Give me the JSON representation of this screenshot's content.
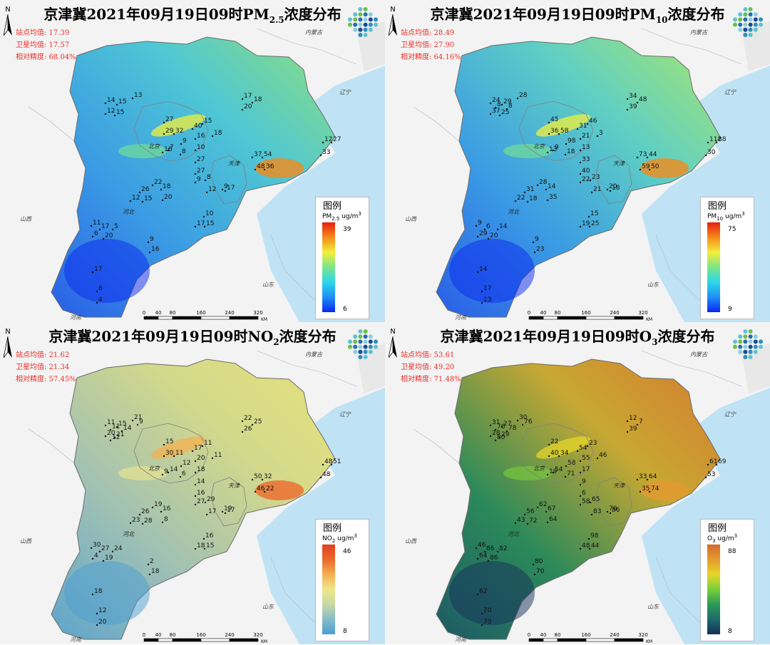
{
  "panels": [
    {
      "id": "pm25",
      "title_prefix": "京津冀2021年09月19日09时PM",
      "title_sub": "2.5",
      "title_suffix": "浓度分布",
      "stats": {
        "station_mean": "站点均值: 17.39",
        "satellite_mean": "卫星均值: 17.57",
        "accuracy": "相对精度: 68.04%"
      },
      "legend": {
        "title": "图例",
        "unit_prefix": "PM",
        "unit_sub": "2.5",
        "unit_suffix": " ug/m",
        "unit_sup": "3",
        "max": "39",
        "min": "6",
        "colors": [
          "#0a28f0",
          "#1f8ff5",
          "#2bd7ea",
          "#7be68a",
          "#f2ef3a",
          "#f58a1a",
          "#e81d10"
        ]
      },
      "ramp_fill": [
        "#2a5ee6",
        "#3a9ae4",
        "#4fc7d4",
        "#8fe07c"
      ],
      "stations": [
        "14",
        "15",
        "13",
        "12",
        "15",
        "17",
        "18",
        "20",
        "27",
        "15",
        "29",
        "32",
        "40",
        "16",
        "18",
        "7",
        "9",
        "8",
        "16",
        "10",
        "27",
        "27",
        "37",
        "54",
        "48",
        "36",
        "12",
        "27",
        "33",
        "22",
        "26",
        "18",
        "15",
        "12",
        "9",
        "8",
        "12",
        "9",
        "17",
        "20",
        "10",
        "17",
        "15",
        "11",
        "17",
        "5",
        "6",
        "20",
        "9",
        "16",
        "17",
        "6",
        "4"
      ]
    },
    {
      "id": "pm10",
      "title_prefix": "京津冀2021年09月19日09时PM",
      "title_sub": "10",
      "title_suffix": "浓度分布",
      "stats": {
        "station_mean": "站点均值: 28.49",
        "satellite_mean": "卫星均值: 27.90",
        "accuracy": "相对精度: 64.16%"
      },
      "legend": {
        "title": "图例",
        "unit_prefix": "PM",
        "unit_sub": "10",
        "unit_suffix": " ug/m",
        "unit_sup": "3",
        "max": "75",
        "min": "9",
        "colors": [
          "#0a28f0",
          "#1f8ff5",
          "#2bd7ea",
          "#7be68a",
          "#f2ef3a",
          "#f58a1a",
          "#e81d10"
        ]
      },
      "ramp_fill": [
        "#2a5ee6",
        "#3a9ae4",
        "#5fcfc4",
        "#a8e66c"
      ],
      "stations": [
        "24",
        "29",
        "28",
        "37",
        "25",
        "34",
        "48",
        "39",
        "45",
        "46",
        "36",
        "58",
        "31",
        "21",
        "3",
        "9",
        "98",
        "18",
        "13",
        "13",
        "33",
        "40",
        "73",
        "44",
        "59",
        "50",
        "112",
        "88",
        "30",
        "28",
        "31",
        "14",
        "18",
        "22",
        "22",
        "23",
        "21",
        "20",
        "18",
        "35",
        "15",
        "19",
        "25",
        "9",
        "6",
        "14",
        "29",
        "20",
        "9",
        "23",
        "14",
        "17",
        "13",
        "8",
        "8"
      ]
    },
    {
      "id": "no2",
      "title_prefix": "京津冀2021年09月19日09时NO",
      "title_sub": "2",
      "title_suffix": "浓度分布",
      "stats": {
        "station_mean": "站点均值: 21.62",
        "satellite_mean": "卫星均值: 21.34",
        "accuracy": "相对精度: 57.45%"
      },
      "legend": {
        "title": "图例",
        "unit_prefix": "NO",
        "unit_sub": "2",
        "unit_suffix": " ug/m",
        "unit_sup": "3",
        "max": "46",
        "min": "8",
        "colors": [
          "#4c9ed2",
          "#86bcc8",
          "#c8d9a4",
          "#efe78a",
          "#f4b050",
          "#ec6a2c",
          "#e0401e"
        ]
      },
      "ramp_fill": [
        "#5ea5cc",
        "#9fc0b4",
        "#d2d88c",
        "#e8e27a"
      ],
      "stations": [
        "11",
        "15",
        "21",
        "20",
        "21",
        "22",
        "25",
        "26",
        "15",
        "11",
        "30",
        "11",
        "17",
        "20",
        "11",
        "14",
        "12",
        "6",
        "9",
        "18",
        "14",
        "16",
        "50",
        "32",
        "46",
        "22",
        "48",
        "51",
        "48",
        "19",
        "26",
        "16",
        "28",
        "23",
        "27",
        "29",
        "17",
        "19",
        "17",
        "8",
        "16",
        "18",
        "15",
        "30",
        "27",
        "24",
        "4",
        "19",
        "2",
        "18",
        "18",
        "12",
        "20",
        "11",
        "14",
        "9",
        "12"
      ]
    },
    {
      "id": "o3",
      "title_prefix": "京津冀2021年09月19日09时O",
      "title_sub": "3",
      "title_suffix": "浓度分布",
      "stats": {
        "station_mean": "站点均值: 53.61",
        "satellite_mean": "卫星均值: 49.20",
        "accuracy": "相对精度: 71.48%"
      },
      "legend": {
        "title": "图例",
        "unit_prefix": "O",
        "unit_sub": "3",
        "unit_suffix": " ug/m",
        "unit_sup": "3",
        "max": "88",
        "min": "8",
        "colors": [
          "#16305a",
          "#1f6a6a",
          "#2a9a58",
          "#7ad03a",
          "#e6d628",
          "#e49a30",
          "#d46a2c"
        ]
      },
      "ramp_fill": [
        "#1d5a66",
        "#2c8a5a",
        "#c8a832",
        "#d47a2e"
      ],
      "stations": [
        "31",
        "27",
        "30",
        "28",
        "29",
        "12",
        "7",
        "39",
        "22",
        "23",
        "40",
        "34",
        "54",
        "55",
        "46",
        "54",
        "58",
        "71",
        "19",
        "17",
        "9",
        "6",
        "33",
        "64",
        "35",
        "74",
        "61",
        "69",
        "53",
        "62",
        "56",
        "67",
        "72",
        "43",
        "58",
        "65",
        "83",
        "70",
        "86",
        "64",
        "98",
        "48",
        "44",
        "46",
        "86",
        "82",
        "64",
        "86",
        "80",
        "70",
        "62",
        "70",
        "70",
        "76",
        "78",
        "76",
        "80"
      ]
    }
  ],
  "place_labels": {
    "inner_mongolia": "内蒙古",
    "liaoning": "辽宁",
    "shanxi": "山西",
    "shandong": "山东",
    "henan": "河南",
    "hebei": "河北",
    "beijing": "北京",
    "tianjin": "天津"
  },
  "north_label": "N",
  "scalebar": {
    "ticks": [
      "0",
      "40",
      "80",
      "160",
      "240",
      "320"
    ],
    "unit": "KM"
  }
}
